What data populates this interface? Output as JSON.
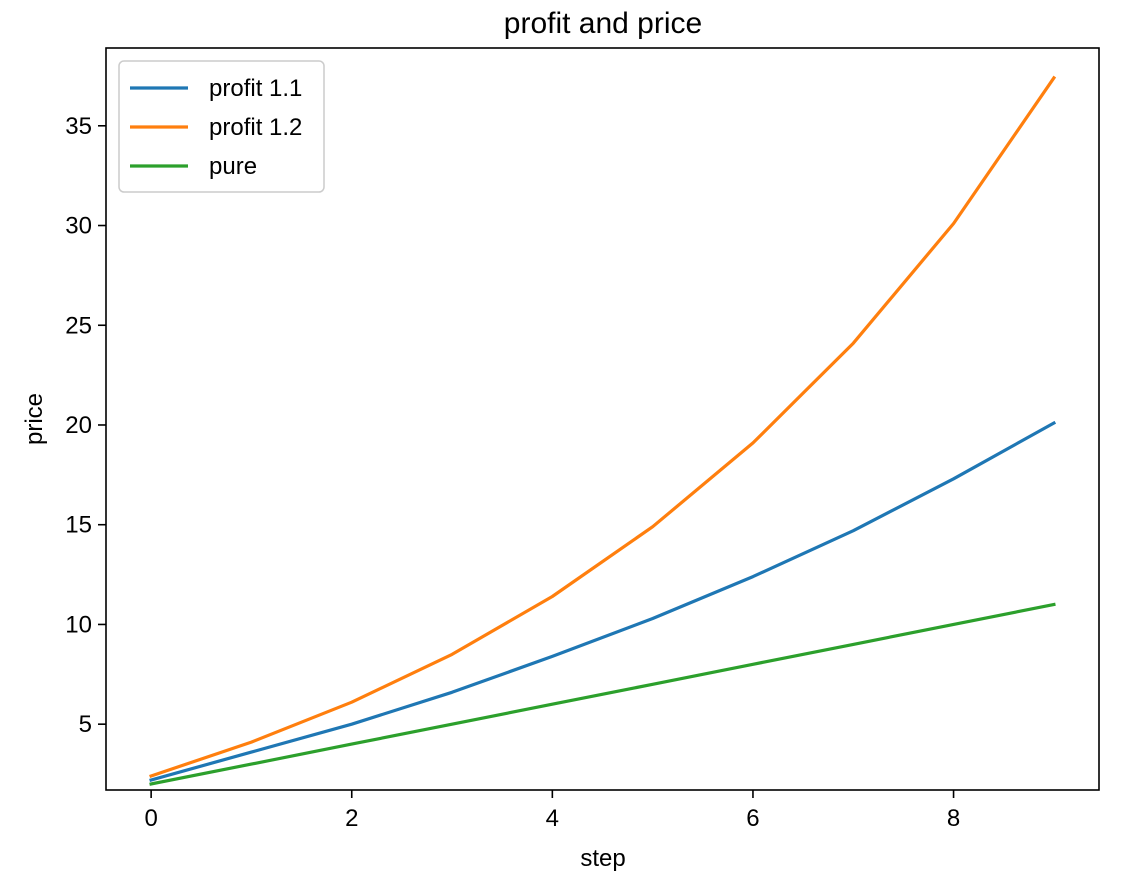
{
  "chart_data": {
    "type": "line",
    "title": "profit and price",
    "xlabel": "step",
    "ylabel": "price",
    "x": [
      0,
      1,
      2,
      3,
      4,
      5,
      6,
      7,
      8,
      9
    ],
    "xlim": [
      -0.45,
      9.45
    ],
    "ylim": [
      1.7,
      38.9
    ],
    "xticks": [
      0,
      2,
      4,
      6,
      8
    ],
    "yticks": [
      5,
      10,
      15,
      20,
      25,
      30,
      35
    ],
    "grid": false,
    "legend_position": "top-left",
    "series": [
      {
        "name": "profit 1.1",
        "color": "#1f77b4",
        "values": [
          2.2,
          3.6,
          5.0,
          6.6,
          8.4,
          10.3,
          12.4,
          14.7,
          17.3,
          20.1
        ]
      },
      {
        "name": "profit 1.2",
        "color": "#ff7f0e",
        "values": [
          2.4,
          4.1,
          6.1,
          8.5,
          11.4,
          14.9,
          19.1,
          24.1,
          30.1,
          37.4
        ]
      },
      {
        "name": "pure",
        "color": "#2ca02c",
        "values": [
          2.0,
          3.0,
          4.0,
          5.0,
          6.0,
          7.0,
          8.0,
          9.0,
          10.0,
          11.0
        ]
      }
    ]
  }
}
